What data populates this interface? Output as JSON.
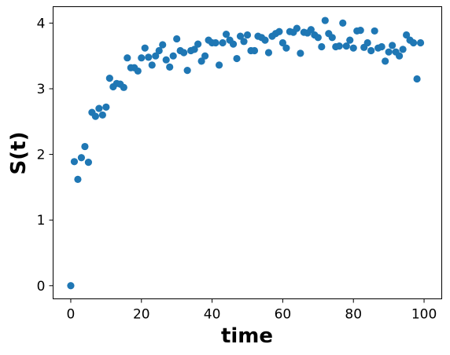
{
  "chart_data": {
    "type": "scatter",
    "title": "",
    "xlabel": "time",
    "ylabel": "S(t)",
    "xlim": [
      -5,
      105
    ],
    "ylim": [
      -0.2,
      4.25
    ],
    "x_ticks": [
      0,
      20,
      40,
      60,
      80,
      100
    ],
    "y_ticks": [
      0,
      1,
      2,
      3,
      4
    ],
    "grid": false,
    "legend": "none",
    "marker_color": "#1f77b4",
    "series": [
      {
        "points": [
          [
            0,
            0.0
          ],
          [
            1,
            1.89
          ],
          [
            2,
            1.62
          ],
          [
            3,
            1.95
          ],
          [
            4,
            2.12
          ],
          [
            5,
            1.88
          ],
          [
            6,
            2.64
          ],
          [
            7,
            2.58
          ],
          [
            8,
            2.7
          ],
          [
            9,
            2.6
          ],
          [
            10,
            2.72
          ],
          [
            11,
            3.16
          ],
          [
            12,
            3.03
          ],
          [
            13,
            3.08
          ],
          [
            14,
            3.07
          ],
          [
            15,
            3.02
          ],
          [
            16,
            3.47
          ],
          [
            17,
            3.32
          ],
          [
            18,
            3.32
          ],
          [
            19,
            3.27
          ],
          [
            20,
            3.47
          ],
          [
            21,
            3.62
          ],
          [
            22,
            3.48
          ],
          [
            23,
            3.36
          ],
          [
            24,
            3.5
          ],
          [
            25,
            3.58
          ],
          [
            26,
            3.67
          ],
          [
            27,
            3.44
          ],
          [
            28,
            3.33
          ],
          [
            29,
            3.5
          ],
          [
            30,
            3.76
          ],
          [
            31,
            3.58
          ],
          [
            32,
            3.55
          ],
          [
            33,
            3.28
          ],
          [
            34,
            3.58
          ],
          [
            35,
            3.6
          ],
          [
            36,
            3.68
          ],
          [
            37,
            3.42
          ],
          [
            38,
            3.5
          ],
          [
            39,
            3.74
          ],
          [
            40,
            3.7
          ],
          [
            41,
            3.7
          ],
          [
            42,
            3.36
          ],
          [
            43,
            3.7
          ],
          [
            44,
            3.83
          ],
          [
            45,
            3.74
          ],
          [
            46,
            3.68
          ],
          [
            47,
            3.46
          ],
          [
            48,
            3.8
          ],
          [
            49,
            3.72
          ],
          [
            50,
            3.82
          ],
          [
            51,
            3.58
          ],
          [
            52,
            3.58
          ],
          [
            53,
            3.8
          ],
          [
            54,
            3.78
          ],
          [
            55,
            3.74
          ],
          [
            56,
            3.55
          ],
          [
            57,
            3.8
          ],
          [
            58,
            3.84
          ],
          [
            59,
            3.87
          ],
          [
            60,
            3.7
          ],
          [
            61,
            3.62
          ],
          [
            62,
            3.87
          ],
          [
            63,
            3.86
          ],
          [
            64,
            3.92
          ],
          [
            65,
            3.54
          ],
          [
            66,
            3.86
          ],
          [
            67,
            3.85
          ],
          [
            68,
            3.9
          ],
          [
            69,
            3.82
          ],
          [
            70,
            3.78
          ],
          [
            71,
            3.64
          ],
          [
            72,
            4.04
          ],
          [
            73,
            3.84
          ],
          [
            74,
            3.78
          ],
          [
            75,
            3.64
          ],
          [
            76,
            3.65
          ],
          [
            77,
            4.0
          ],
          [
            78,
            3.65
          ],
          [
            79,
            3.74
          ],
          [
            80,
            3.62
          ],
          [
            81,
            3.88
          ],
          [
            82,
            3.89
          ],
          [
            83,
            3.63
          ],
          [
            84,
            3.7
          ],
          [
            85,
            3.58
          ],
          [
            86,
            3.88
          ],
          [
            87,
            3.62
          ],
          [
            88,
            3.64
          ],
          [
            89,
            3.42
          ],
          [
            90,
            3.56
          ],
          [
            91,
            3.66
          ],
          [
            92,
            3.56
          ],
          [
            93,
            3.5
          ],
          [
            94,
            3.6
          ],
          [
            95,
            3.82
          ],
          [
            96,
            3.74
          ],
          [
            97,
            3.7
          ],
          [
            98,
            3.15
          ],
          [
            99,
            3.7
          ]
        ]
      }
    ]
  }
}
